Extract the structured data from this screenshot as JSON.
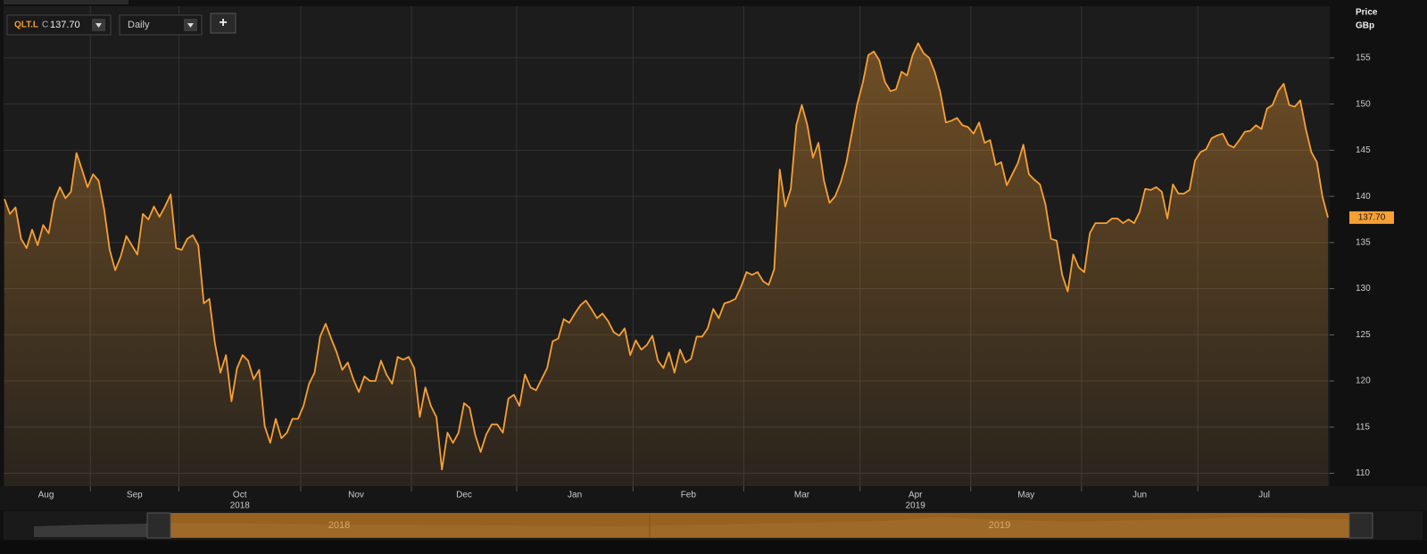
{
  "chart_data": {
    "type": "area",
    "ticker": "QLT.L",
    "close_prefix": "C",
    "close_label": "137.70",
    "interval": "Daily",
    "add_button": "+",
    "y_axis_title": "Price",
    "y_axis_unit": "GBp",
    "last_value_label": "137.70",
    "color": "#f7a034",
    "grid": true,
    "ylim": [
      108.6,
      160.5
    ],
    "yticks": [
      110,
      115,
      120,
      125,
      130,
      135,
      140,
      145,
      150,
      155
    ],
    "navigator_labels": [
      "2018",
      "2019"
    ],
    "months": [
      {
        "label": "Aug",
        "values": [
          139.7,
          138.1,
          138.8,
          135.4,
          134.4,
          136.4,
          134.7,
          136.9,
          136.0,
          139.5,
          141.0,
          139.8,
          140.5,
          144.7,
          142.9,
          141.0
        ]
      },
      {
        "label": "Sep",
        "values": [
          142.4,
          141.7,
          138.6,
          134.2,
          132.0,
          133.5,
          135.7,
          134.7,
          133.7,
          138.1,
          137.5,
          138.9,
          137.8,
          138.9,
          140.2,
          134.4
        ]
      },
      {
        "label": "Oct",
        "year": "2018",
        "values": [
          134.2,
          135.4,
          135.8,
          134.7,
          128.4,
          128.9,
          124.1,
          120.9,
          122.8,
          117.8,
          121.4,
          122.8,
          122.2,
          120.2,
          121.2,
          115.1,
          113.3,
          115.9,
          113.8,
          114.4,
          115.9,
          115.9
        ]
      },
      {
        "label": "Nov",
        "values": [
          117.3,
          119.7,
          120.9,
          124.8,
          126.2,
          124.6,
          123.1,
          121.2,
          122.0,
          120.2,
          118.8,
          120.5,
          120.0,
          120.0,
          122.2,
          120.7,
          119.7,
          122.6,
          122.3,
          122.6
        ]
      },
      {
        "label": "Dec",
        "values": [
          121.4,
          116.1,
          119.3,
          117.3,
          116.1,
          110.4,
          114.4,
          113.3,
          114.4,
          117.6,
          117.1,
          114.2,
          112.3,
          114.2,
          115.3,
          115.3,
          114.4,
          118.1,
          118.5
        ]
      },
      {
        "label": "Jan",
        "values": [
          117.3,
          120.7,
          119.3,
          119.0,
          120.2,
          121.4,
          124.3,
          124.6,
          126.7,
          126.3,
          127.3,
          128.2,
          128.7,
          127.8,
          126.8,
          127.3,
          126.5,
          125.3,
          124.9,
          125.7,
          122.8
        ]
      },
      {
        "label": "Feb",
        "values": [
          124.4,
          123.4,
          123.9,
          124.9,
          122.2,
          121.4,
          123.1,
          120.9,
          123.4,
          122.0,
          122.4,
          124.8,
          124.8,
          125.7,
          127.8,
          126.8,
          128.4,
          128.6,
          128.9,
          130.2
        ]
      },
      {
        "label": "Mar",
        "values": [
          131.8,
          131.5,
          131.8,
          130.8,
          130.4,
          132.1,
          142.9,
          138.9,
          140.8,
          147.7,
          149.9,
          147.7,
          144.2,
          145.8,
          141.7,
          139.3,
          140.0,
          141.5,
          143.6,
          146.8,
          150.0
        ]
      },
      {
        "label": "Apr",
        "year": "2019",
        "values": [
          152.3,
          155.3,
          155.7,
          154.7,
          152.4,
          151.4,
          151.6,
          153.5,
          153.1,
          155.3,
          156.6,
          155.5,
          155.0,
          153.5,
          151.3,
          148.0,
          148.2,
          148.5,
          147.7,
          147.5
        ]
      },
      {
        "label": "May",
        "values": [
          146.8,
          148.0,
          145.8,
          146.1,
          143.4,
          143.7,
          141.2,
          142.4,
          143.6,
          145.6,
          142.4,
          141.8,
          141.3,
          139.1,
          135.4,
          135.2,
          131.5,
          129.7,
          133.7,
          132.3
        ]
      },
      {
        "label": "Jun",
        "values": [
          131.8,
          136.0,
          137.1,
          137.1,
          137.1,
          137.6,
          137.6,
          137.1,
          137.5,
          137.1,
          138.3,
          140.8,
          140.7,
          141.0,
          140.5,
          137.6,
          141.3,
          140.3,
          140.3,
          140.7,
          143.9
        ]
      },
      {
        "label": "Jul",
        "values": [
          144.8,
          145.1,
          146.3,
          146.6,
          146.8,
          145.6,
          145.3,
          146.1,
          147.0,
          147.1,
          147.7,
          147.3,
          149.5,
          149.9,
          151.4,
          152.2,
          149.9,
          149.7,
          150.4,
          147.3,
          144.8,
          143.7,
          140.0,
          137.7
        ]
      }
    ]
  }
}
